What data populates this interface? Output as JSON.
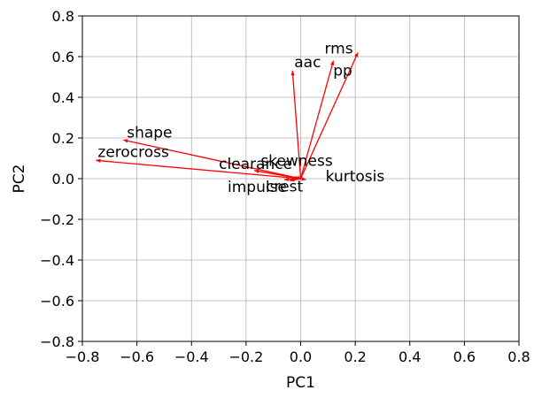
{
  "chart_data": {
    "type": "scatter",
    "subtype": "biplot-vectors",
    "title": "",
    "xlabel": "PC1",
    "ylabel": "PC2",
    "xlim": [
      -0.8,
      0.8
    ],
    "ylim": [
      -0.8,
      0.8
    ],
    "xticks": [
      "−0.8",
      "−0.6",
      "−0.4",
      "−0.2",
      "0.0",
      "0.2",
      "0.4",
      "0.6",
      "0.8"
    ],
    "yticks": [
      "−0.8",
      "−0.6",
      "−0.4",
      "−0.2",
      "0.0",
      "0.2",
      "0.4",
      "0.6",
      "0.8"
    ],
    "grid": true,
    "vector_color": "#ff0000",
    "vectors": [
      {
        "label": "rms",
        "x": 0.12,
        "y": 0.58
      },
      {
        "label": "pp",
        "x": 0.21,
        "y": 0.62
      },
      {
        "label": "aac",
        "x": -0.03,
        "y": 0.53
      },
      {
        "label": "shape",
        "x": -0.65,
        "y": 0.19
      },
      {
        "label": "zerocross",
        "x": -0.75,
        "y": 0.09
      },
      {
        "label": "clearance",
        "x": -0.17,
        "y": 0.04
      },
      {
        "label": "skewness",
        "x": -0.02,
        "y": 0.01
      },
      {
        "label": "kurtosis",
        "x": 0.02,
        "y": -0.005
      },
      {
        "label": "impulse",
        "x": -0.06,
        "y": -0.005
      },
      {
        "label": "crest",
        "x": -0.04,
        "y": -0.01
      }
    ]
  }
}
